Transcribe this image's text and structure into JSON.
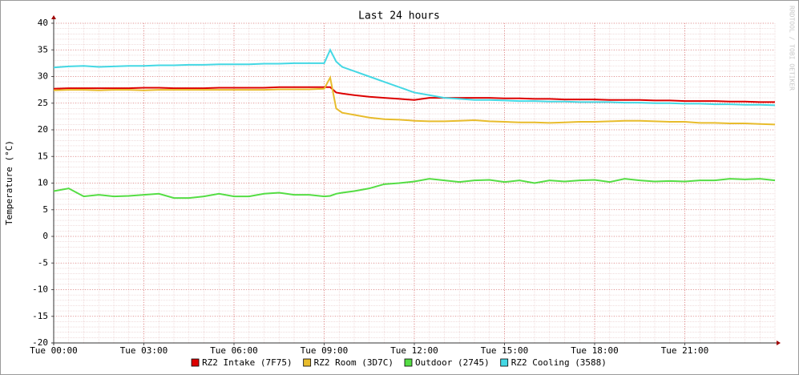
{
  "chart_data": {
    "type": "line",
    "title": "Last 24 hours",
    "y_label": "Temperature (°C)",
    "watermark": "RRDTOOL / TOBI OETIKER",
    "grid": true,
    "legend": "bottom",
    "x": [
      0,
      0.5,
      1,
      1.5,
      2,
      2.5,
      3,
      3.5,
      4,
      4.5,
      5,
      5.5,
      6,
      6.5,
      7,
      7.5,
      8,
      8.5,
      9,
      9.2,
      9.4,
      9.6,
      10,
      10.5,
      11,
      11.5,
      12,
      12.5,
      13,
      13.5,
      14,
      14.5,
      15,
      15.5,
      16,
      16.5,
      17,
      17.5,
      18,
      18.5,
      19,
      19.5,
      20,
      20.5,
      21,
      21.5,
      22,
      22.5,
      23,
      23.5,
      24
    ],
    "xlim": [
      0,
      24
    ],
    "xticks": [
      {
        "value": 0,
        "label": "Tue 00:00"
      },
      {
        "value": 3,
        "label": "Tue 03:00"
      },
      {
        "value": 6,
        "label": "Tue 06:00"
      },
      {
        "value": 9,
        "label": "Tue 09:00"
      },
      {
        "value": 12,
        "label": "Tue 12:00"
      },
      {
        "value": 15,
        "label": "Tue 15:00"
      },
      {
        "value": 18,
        "label": "Tue 18:00"
      },
      {
        "value": 21,
        "label": "Tue 21:00"
      }
    ],
    "ylim": [
      -20,
      40
    ],
    "yticks": [
      -20,
      -15,
      -10,
      -5,
      0,
      5,
      10,
      15,
      20,
      25,
      30,
      35,
      40
    ],
    "series": [
      {
        "name": "RZ2 Intake (7F75)",
        "color": "#dd0000",
        "values": [
          27.7,
          27.8,
          27.8,
          27.8,
          27.8,
          27.8,
          27.9,
          27.9,
          27.8,
          27.8,
          27.8,
          27.9,
          27.9,
          27.9,
          27.9,
          28.0,
          28.0,
          28.0,
          28.0,
          28.0,
          27.0,
          26.8,
          26.5,
          26.2,
          26.0,
          25.8,
          25.6,
          26.0,
          26.0,
          26.0,
          26.0,
          26.0,
          25.9,
          25.9,
          25.8,
          25.8,
          25.7,
          25.7,
          25.7,
          25.6,
          25.6,
          25.6,
          25.5,
          25.5,
          25.4,
          25.4,
          25.4,
          25.3,
          25.3,
          25.2,
          25.2
        ]
      },
      {
        "name": "RZ2 Room (3D7C)",
        "color": "#e8bc2c",
        "values": [
          27.4,
          27.5,
          27.5,
          27.4,
          27.5,
          27.5,
          27.4,
          27.5,
          27.5,
          27.5,
          27.5,
          27.5,
          27.5,
          27.5,
          27.5,
          27.6,
          27.6,
          27.6,
          27.7,
          29.8,
          24.0,
          23.2,
          22.8,
          22.3,
          22.0,
          21.9,
          21.7,
          21.6,
          21.6,
          21.7,
          21.8,
          21.6,
          21.5,
          21.4,
          21.4,
          21.3,
          21.4,
          21.5,
          21.5,
          21.6,
          21.7,
          21.7,
          21.6,
          21.5,
          21.5,
          21.3,
          21.3,
          21.2,
          21.2,
          21.1,
          21.0
        ]
      },
      {
        "name": "Outdoor (2745)",
        "color": "#55dd44",
        "values": [
          8.5,
          9.0,
          7.5,
          7.8,
          7.5,
          7.6,
          7.8,
          8.0,
          7.2,
          7.2,
          7.5,
          8.0,
          7.5,
          7.5,
          8.0,
          8.2,
          7.8,
          7.8,
          7.5,
          7.6,
          8.0,
          8.2,
          8.5,
          9.0,
          9.8,
          10.0,
          10.3,
          10.8,
          10.5,
          10.2,
          10.5,
          10.6,
          10.2,
          10.5,
          10.0,
          10.5,
          10.3,
          10.5,
          10.6,
          10.2,
          10.8,
          10.5,
          10.3,
          10.4,
          10.3,
          10.5,
          10.5,
          10.8,
          10.7,
          10.8,
          10.5
        ]
      },
      {
        "name": "RZ2 Cooling (3588)",
        "color": "#44d8e4",
        "values": [
          31.7,
          31.9,
          32.0,
          31.8,
          31.9,
          32.0,
          32.0,
          32.1,
          32.1,
          32.2,
          32.2,
          32.3,
          32.3,
          32.3,
          32.4,
          32.4,
          32.5,
          32.5,
          32.5,
          35.0,
          32.8,
          31.8,
          31.0,
          30.0,
          29.0,
          28.0,
          27.0,
          26.5,
          26.0,
          25.8,
          25.6,
          25.6,
          25.5,
          25.4,
          25.4,
          25.3,
          25.3,
          25.2,
          25.2,
          25.2,
          25.1,
          25.1,
          25.0,
          25.0,
          24.9,
          24.9,
          24.8,
          24.8,
          24.7,
          24.7,
          24.6
        ]
      }
    ]
  }
}
